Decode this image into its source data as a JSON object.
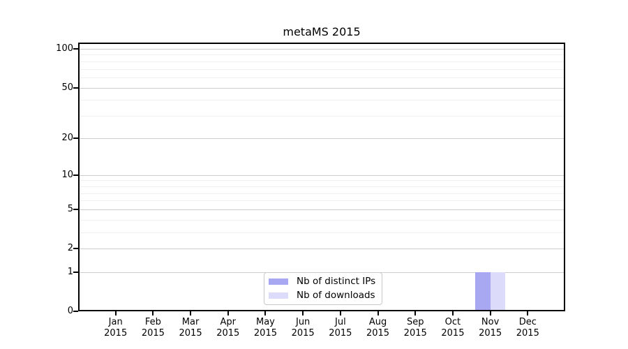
{
  "chart_data": {
    "type": "bar",
    "title": "metaMS 2015",
    "categories": [
      "Jan 2015",
      "Feb 2015",
      "Mar 2015",
      "Apr 2015",
      "May 2015",
      "Jun 2015",
      "Jul 2015",
      "Aug 2015",
      "Sep 2015",
      "Oct 2015",
      "Nov 2015",
      "Dec 2015"
    ],
    "series": [
      {
        "name": "Nb of distinct IPs",
        "color": "#a8a8f2",
        "values": [
          0,
          0,
          0,
          0,
          0,
          0,
          0,
          0,
          0,
          0,
          1,
          0
        ]
      },
      {
        "name": "Nb of downloads",
        "color": "#dcdcfa",
        "values": [
          0,
          0,
          0,
          0,
          0,
          0,
          0,
          0,
          0,
          0,
          1,
          0
        ]
      }
    ],
    "xlabel": "",
    "ylabel": "",
    "yscale": "log1p",
    "ylim": [
      0,
      112
    ],
    "y_major_ticks": [
      0,
      1,
      2,
      5,
      10,
      20,
      50,
      100
    ],
    "y_minor_gridlines": [
      3,
      4,
      6,
      7,
      8,
      9,
      30,
      40,
      60,
      70,
      80,
      90
    ],
    "grid": true,
    "legend_position": "lower-center-inside"
  },
  "colors": {
    "background": "#ffffff",
    "frame": "#000000",
    "grid_major": "#cccccc",
    "grid_minor": "#f0f0f0",
    "text": "#000000",
    "legend_border": "#c9c9c9"
  }
}
